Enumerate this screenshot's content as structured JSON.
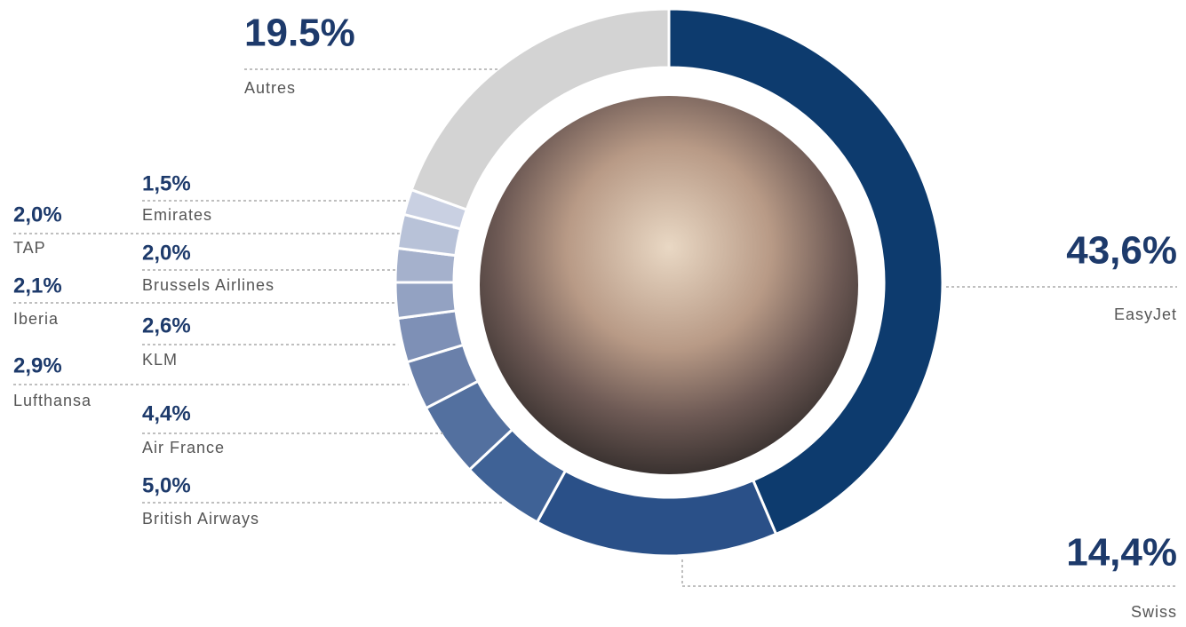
{
  "chart_data": {
    "type": "donut",
    "categories": [
      "EasyJet",
      "Swiss",
      "British Airways",
      "Air France",
      "Lufthansa",
      "KLM",
      "Iberia",
      "Brussels Airlines",
      "TAP",
      "Emirates",
      "Autres"
    ],
    "values": [
      43.6,
      14.4,
      5.0,
      4.4,
      2.9,
      2.6,
      2.1,
      2.0,
      2.0,
      1.5,
      19.5
    ],
    "value_labels": [
      "43,6%",
      "14,4%",
      "5,0%",
      "4,4%",
      "2,9%",
      "2,6%",
      "2,1%",
      "2,0%",
      "2,0%",
      "1,5%",
      "19.5%"
    ],
    "colors": [
      "#0d3b6e",
      "#2a5088",
      "#3f6296",
      "#53709f",
      "#6a80aa",
      "#7e90b6",
      "#93a2c2",
      "#a5b1cc",
      "#b8c2d8",
      "#c9d0e2",
      "#d3d3d3"
    ]
  }
}
